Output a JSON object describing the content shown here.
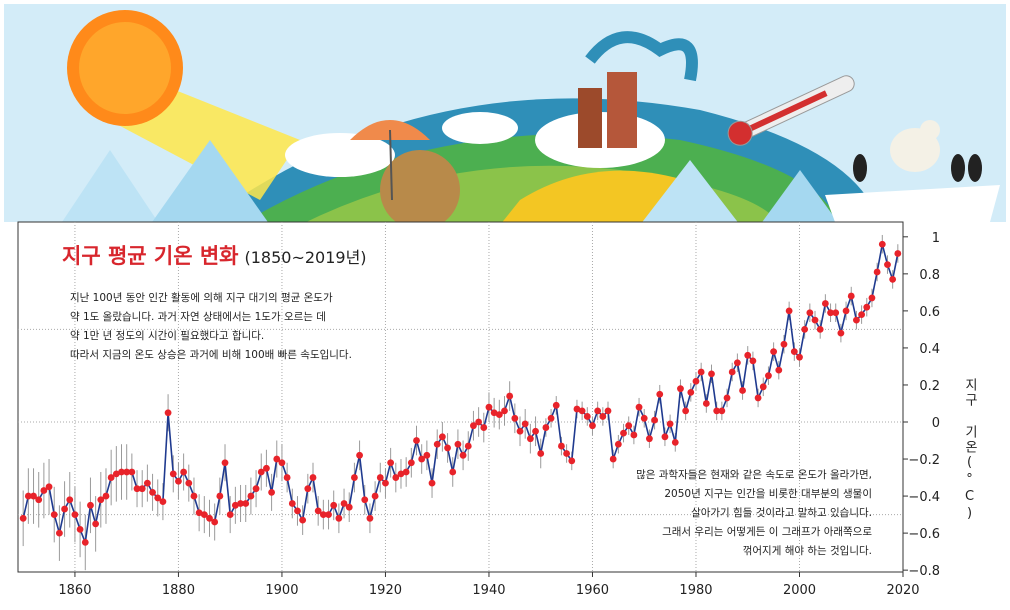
{
  "chart_data": {
    "type": "line",
    "title": "지구 평균 기온 변화",
    "subtitle": "(1850~2019년)",
    "y_label": "지구 기온(°C)",
    "notes_top": [
      "지난 100년 동안 인간 활동에 의해 지구 대기의 평균 온도가",
      "약 1도 올랐습니다. 과거 자연 상태에서는 1도가 오르는 데",
      "약 1만 년 정도의 시간이 필요했다고 합니다.",
      "따라서 지금의 온도 상승은 과거에 비해 100배 빠른 속도입니다."
    ],
    "notes_bottom": [
      "많은 과학자들은 현재와 같은 속도로 온도가 올라가면,",
      "2050년 지구는 인간을 비롯한 대부분의 생물이",
      "살아가기 힘들 것이라고 말하고 있습니다.",
      "그래서 우리는 어떻게든 이 그래프가 아래쪽으로",
      "꺾어지게 해야 하는 것입니다."
    ],
    "x": [
      1850,
      1851,
      1852,
      1853,
      1854,
      1855,
      1856,
      1857,
      1858,
      1859,
      1860,
      1861,
      1862,
      1863,
      1864,
      1865,
      1866,
      1867,
      1868,
      1869,
      1870,
      1871,
      1872,
      1873,
      1874,
      1875,
      1876,
      1877,
      1878,
      1879,
      1880,
      1881,
      1882,
      1883,
      1884,
      1885,
      1886,
      1887,
      1888,
      1889,
      1890,
      1891,
      1892,
      1893,
      1894,
      1895,
      1896,
      1897,
      1898,
      1899,
      1900,
      1901,
      1902,
      1903,
      1904,
      1905,
      1906,
      1907,
      1908,
      1909,
      1910,
      1911,
      1912,
      1913,
      1914,
      1915,
      1916,
      1917,
      1918,
      1919,
      1920,
      1921,
      1922,
      1923,
      1924,
      1925,
      1926,
      1927,
      1928,
      1929,
      1930,
      1931,
      1932,
      1933,
      1934,
      1935,
      1936,
      1937,
      1938,
      1939,
      1940,
      1941,
      1942,
      1943,
      1944,
      1945,
      1946,
      1947,
      1948,
      1949,
      1950,
      1951,
      1952,
      1953,
      1954,
      1955,
      1956,
      1957,
      1958,
      1959,
      1960,
      1961,
      1962,
      1963,
      1964,
      1965,
      1966,
      1967,
      1968,
      1969,
      1970,
      1971,
      1972,
      1973,
      1974,
      1975,
      1976,
      1977,
      1978,
      1979,
      1980,
      1981,
      1982,
      1983,
      1984,
      1985,
      1986,
      1987,
      1988,
      1989,
      1990,
      1991,
      1992,
      1993,
      1994,
      1995,
      1996,
      1997,
      1998,
      1999,
      2000,
      2001,
      2002,
      2003,
      2004,
      2005,
      2006,
      2007,
      2008,
      2009,
      2010,
      2011,
      2012,
      2013,
      2014,
      2015,
      2016,
      2017,
      2018,
      2019
    ],
    "series": [
      {
        "name": "지구 평균 기온",
        "color": "#1f3a8f",
        "marker_color": "#e8232a",
        "values": [
          -0.52,
          -0.4,
          -0.4,
          -0.42,
          -0.37,
          -0.35,
          -0.5,
          -0.6,
          -0.47,
          -0.42,
          -0.5,
          -0.58,
          -0.65,
          -0.45,
          -0.55,
          -0.42,
          -0.4,
          -0.3,
          -0.28,
          -0.27,
          -0.27,
          -0.27,
          -0.36,
          -0.36,
          -0.33,
          -0.38,
          -0.41,
          -0.43,
          0.05,
          -0.28,
          -0.32,
          -0.27,
          -0.33,
          -0.4,
          -0.49,
          -0.5,
          -0.52,
          -0.54,
          -0.4,
          -0.22,
          -0.5,
          -0.45,
          -0.44,
          -0.44,
          -0.4,
          -0.36,
          -0.27,
          -0.25,
          -0.38,
          -0.2,
          -0.22,
          -0.3,
          -0.44,
          -0.48,
          -0.53,
          -0.36,
          -0.3,
          -0.48,
          -0.5,
          -0.5,
          -0.45,
          -0.52,
          -0.44,
          -0.46,
          -0.3,
          -0.18,
          -0.42,
          -0.52,
          -0.4,
          -0.3,
          -0.33,
          -0.22,
          -0.3,
          -0.28,
          -0.27,
          -0.22,
          -0.1,
          -0.2,
          -0.18,
          -0.33,
          -0.12,
          -0.08,
          -0.14,
          -0.27,
          -0.12,
          -0.18,
          -0.13,
          -0.02,
          0.0,
          -0.03,
          0.08,
          0.05,
          0.04,
          0.06,
          0.14,
          0.02,
          -0.05,
          -0.01,
          -0.09,
          -0.05,
          -0.17,
          -0.03,
          0.02,
          0.09,
          -0.13,
          -0.17,
          -0.21,
          0.07,
          0.06,
          0.03,
          -0.02,
          0.06,
          0.03,
          0.06,
          -0.2,
          -0.12,
          -0.06,
          -0.02,
          -0.07,
          0.08,
          0.02,
          -0.09,
          0.01,
          0.15,
          -0.08,
          -0.01,
          -0.11,
          0.18,
          0.06,
          0.16,
          0.22,
          0.27,
          0.1,
          0.26,
          0.06,
          0.06,
          0.13,
          0.27,
          0.32,
          0.17,
          0.36,
          0.33,
          0.13,
          0.19,
          0.25,
          0.38,
          0.28,
          0.42,
          0.6,
          0.38,
          0.35,
          0.5,
          0.59,
          0.55,
          0.5,
          0.64,
          0.59,
          0.59,
          0.48,
          0.6,
          0.68,
          0.55,
          0.58,
          0.62,
          0.67,
          0.81,
          0.96,
          0.85,
          0.77,
          0.91
        ],
        "errors": [
          0.15,
          0.15,
          0.15,
          0.15,
          0.15,
          0.15,
          0.15,
          0.15,
          0.15,
          0.15,
          0.15,
          0.15,
          0.15,
          0.15,
          0.15,
          0.15,
          0.15,
          0.15,
          0.15,
          0.15,
          0.15,
          0.1,
          0.1,
          0.1,
          0.1,
          0.1,
          0.1,
          0.1,
          0.1,
          0.1,
          0.1,
          0.1,
          0.1,
          0.1,
          0.1,
          0.1,
          0.1,
          0.1,
          0.1,
          0.1,
          0.1,
          0.1,
          0.1,
          0.1,
          0.1,
          0.1,
          0.1,
          0.1,
          0.1,
          0.1,
          0.1,
          0.08,
          0.08,
          0.08,
          0.08,
          0.08,
          0.08,
          0.08,
          0.08,
          0.08,
          0.08,
          0.08,
          0.08,
          0.08,
          0.08,
          0.08,
          0.08,
          0.08,
          0.08,
          0.08,
          0.08,
          0.08,
          0.08,
          0.08,
          0.08,
          0.08,
          0.08,
          0.08,
          0.08,
          0.08,
          0.08,
          0.08,
          0.08,
          0.08,
          0.08,
          0.08,
          0.08,
          0.08,
          0.08,
          0.08,
          0.08,
          0.08,
          0.08,
          0.08,
          0.08,
          0.08,
          0.08,
          0.08,
          0.08,
          0.08,
          0.08,
          0.05,
          0.05,
          0.05,
          0.05,
          0.05,
          0.05,
          0.05,
          0.05,
          0.05,
          0.05,
          0.05,
          0.05,
          0.05,
          0.05,
          0.05,
          0.05,
          0.05,
          0.05,
          0.05,
          0.05,
          0.05,
          0.05,
          0.05,
          0.05,
          0.05,
          0.05,
          0.05,
          0.05,
          0.05,
          0.05,
          0.05,
          0.05,
          0.05,
          0.05,
          0.05,
          0.05,
          0.05,
          0.05,
          0.05,
          0.05,
          0.05,
          0.05,
          0.05,
          0.05,
          0.05,
          0.05,
          0.05,
          0.05,
          0.05,
          0.05,
          0.05,
          0.05,
          0.05,
          0.05,
          0.05,
          0.05,
          0.05,
          0.05,
          0.05,
          0.05,
          0.05,
          0.05,
          0.05,
          0.05,
          0.05,
          0.05,
          0.05,
          0.05,
          0.05
        ]
      }
    ],
    "xlim": [
      1849,
      2020
    ],
    "xticks": [
      1860,
      1880,
      1900,
      1920,
      1940,
      1960,
      1980,
      2000,
      2020
    ],
    "ylim": [
      -0.81,
      1.08
    ],
    "yticks": [
      {
        "value": -0.8,
        "label": "−0.8"
      },
      {
        "value": -0.6,
        "label": "−0.6"
      },
      {
        "value": -0.4,
        "label": "−0.4"
      },
      {
        "value": -0.2,
        "label": "−0.2"
      },
      0,
      0.2,
      0.4,
      0.6,
      0.8,
      1
    ],
    "ygrid": [
      -0.5,
      0,
      0.5
    ],
    "grid": true
  }
}
